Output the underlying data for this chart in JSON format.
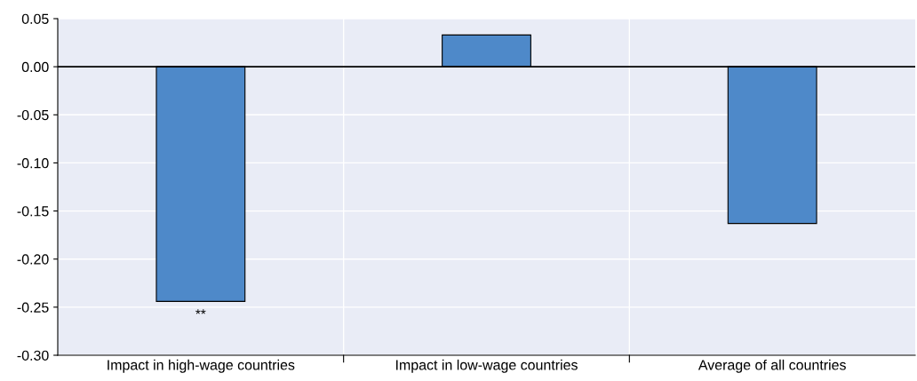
{
  "chart_data": {
    "type": "bar",
    "categories": [
      "Impact in high-wage countries",
      "Impact in low-wage countries",
      "Average of all countries"
    ],
    "values": [
      -0.244,
      0.033,
      -0.163
    ],
    "color": "#4e89c9",
    "ylim": [
      -0.3,
      0.05
    ],
    "yticks": [
      {
        "value": 0.05,
        "label": "0.05"
      },
      {
        "value": 0.0,
        "label": "0.00"
      },
      {
        "value": -0.05,
        "label": "-0.05"
      },
      {
        "value": -0.1,
        "label": "-0.10"
      },
      {
        "value": -0.15,
        "label": "-0.15"
      },
      {
        "value": -0.2,
        "label": "-0.20"
      },
      {
        "value": -0.25,
        "label": "-0.25"
      },
      {
        "value": -0.3,
        "label": "-0.30"
      }
    ],
    "grid": true,
    "ref_lines": [
      {
        "axis": "y",
        "value": 0,
        "color": "#000000"
      }
    ],
    "annotations": [
      {
        "text": "**",
        "x": "Impact in high-wage countries",
        "y": -0.244
      }
    ]
  }
}
